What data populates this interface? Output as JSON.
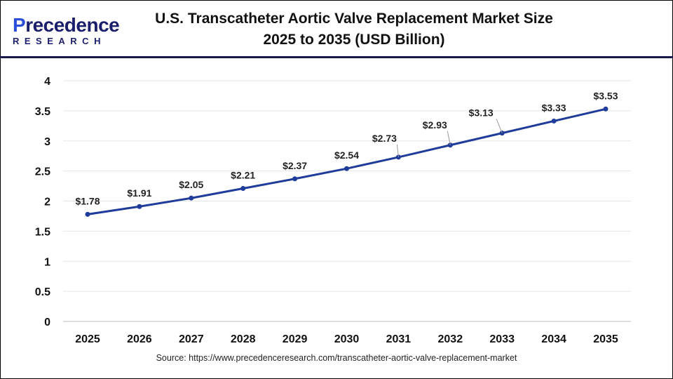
{
  "logo": {
    "line1_a": "P",
    "line1_b": "recedence",
    "line2": "RESEARCH"
  },
  "title": "U.S. Transcatheter Aortic Valve Replacement Market Size 2025 to 2035 (USD Billion)",
  "source": "Source: https://www.precedenceresearch.com/transcatheter-aortic-valve-replacement-market",
  "chart_data": {
    "type": "line",
    "title": "U.S. Transcatheter Aortic Valve Replacement Market Size 2025 to 2035 (USD Billion)",
    "categories": [
      "2025",
      "2026",
      "2027",
      "2028",
      "2029",
      "2030",
      "2031",
      "2032",
      "2033",
      "2034",
      "2035"
    ],
    "values": [
      1.78,
      1.91,
      2.05,
      2.21,
      2.37,
      2.54,
      2.73,
      2.93,
      3.13,
      3.33,
      3.53
    ],
    "data_labels": [
      "$1.78",
      "$1.91",
      "$2.05",
      "$2.21",
      "$2.37",
      "$2.54",
      "$2.73",
      "$2.93",
      "$3.13",
      "$3.33",
      "$3.53"
    ],
    "yticks": [
      "0",
      "0.5",
      "1",
      "1.5",
      "2",
      "2.5",
      "3",
      "3.5",
      "4"
    ],
    "ylim": [
      0,
      4
    ],
    "grid": true,
    "line_color": "#1f3c9a"
  }
}
